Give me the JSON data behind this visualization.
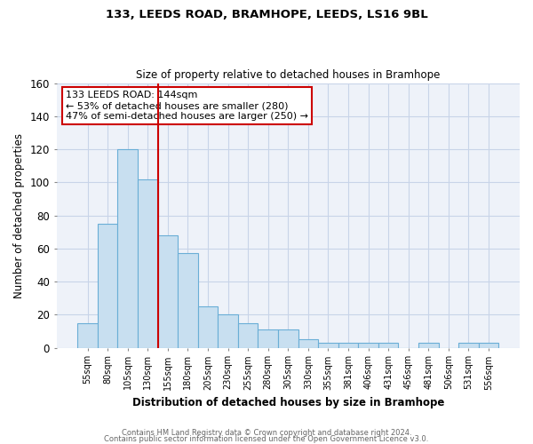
{
  "title": "133, LEEDS ROAD, BRAMHOPE, LEEDS, LS16 9BL",
  "subtitle": "Size of property relative to detached houses in Bramhope",
  "xlabel": "Distribution of detached houses by size in Bramhope",
  "ylabel": "Number of detached properties",
  "bar_labels": [
    "55sqm",
    "80sqm",
    "105sqm",
    "130sqm",
    "155sqm",
    "180sqm",
    "205sqm",
    "230sqm",
    "255sqm",
    "280sqm",
    "305sqm",
    "330sqm",
    "355sqm",
    "381sqm",
    "406sqm",
    "431sqm",
    "456sqm",
    "481sqm",
    "506sqm",
    "531sqm",
    "556sqm"
  ],
  "bar_values": [
    15,
    75,
    120,
    102,
    68,
    57,
    25,
    20,
    15,
    11,
    11,
    5,
    3,
    3,
    3,
    3,
    0,
    3,
    0,
    3,
    3
  ],
  "bar_color": "#c8dff0",
  "bar_edge_color": "#6aaed6",
  "vline_x": 3.5,
  "vline_color": "#cc0000",
  "annotation_title": "133 LEEDS ROAD: 144sqm",
  "annotation_line1": "← 53% of detached houses are smaller (280)",
  "annotation_line2": "47% of semi-detached houses are larger (250) →",
  "annotation_box_color": "#ffffff",
  "annotation_box_edge": "#cc0000",
  "ylim": [
    0,
    160
  ],
  "yticks": [
    0,
    20,
    40,
    60,
    80,
    100,
    120,
    140,
    160
  ],
  "grid_color": "#c8d4e8",
  "bg_color": "#eef2f9",
  "footer1": "Contains HM Land Registry data © Crown copyright and database right 2024.",
  "footer2": "Contains public sector information licensed under the Open Government Licence v3.0."
}
